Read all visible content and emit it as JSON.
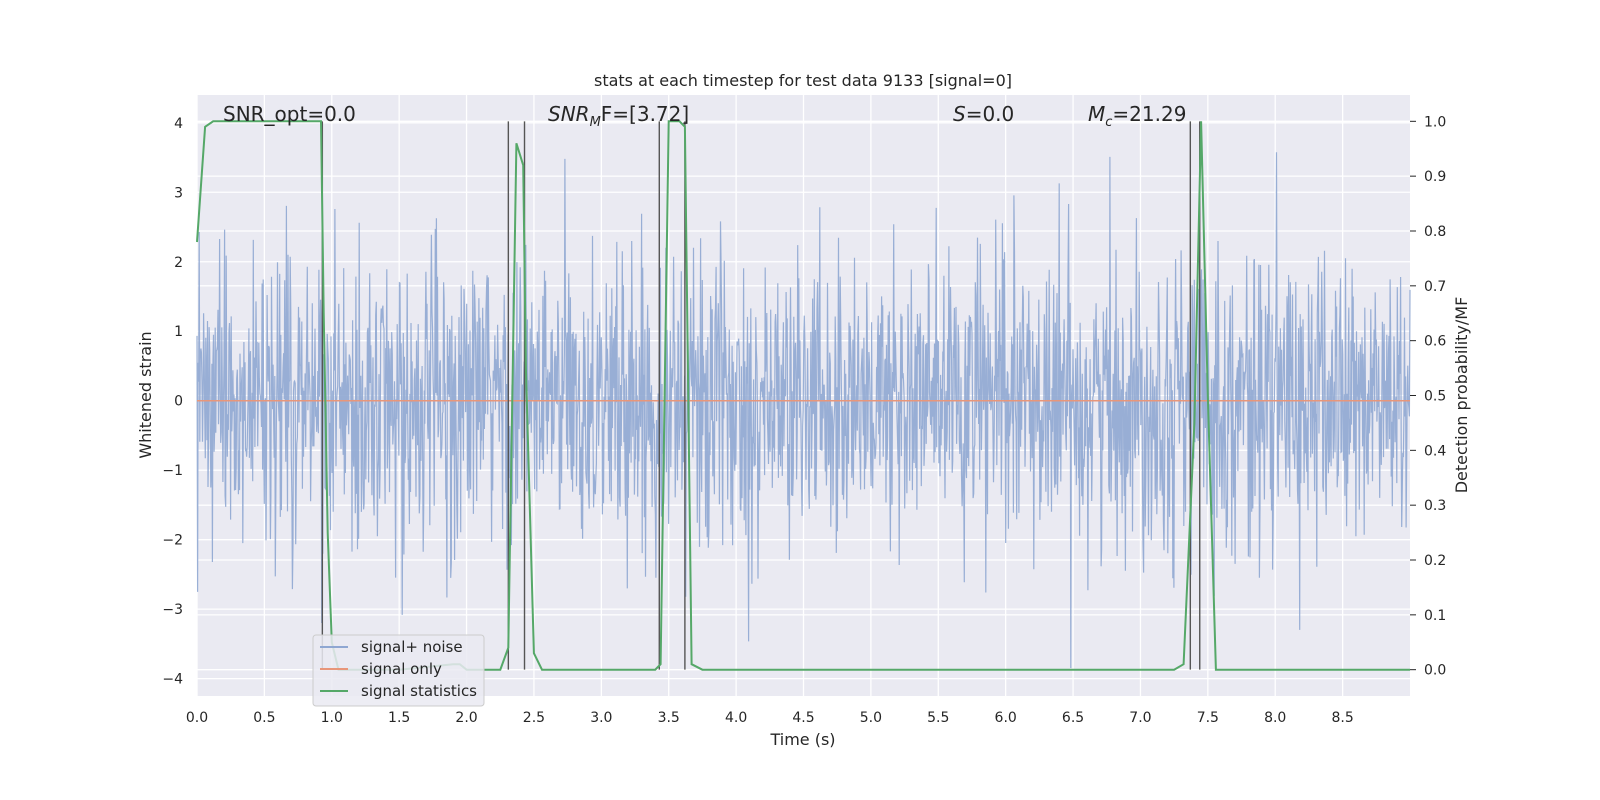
{
  "chart_data": {
    "type": "line",
    "title": "stats at each timestep for test data 9133 [signal=0]",
    "xlabel": "Time (s)",
    "ylabel": "Whitened strain",
    "ylabel_right": "Detection probability/MF",
    "xlim": [
      0.0,
      9.0
    ],
    "ylim": [
      -4.25,
      4.4
    ],
    "ylim_right": [
      -0.048,
      1.048
    ],
    "x_ticks": [
      "0.0",
      "0.5",
      "1.0",
      "1.5",
      "2.0",
      "2.5",
      "3.0",
      "3.5",
      "4.0",
      "4.5",
      "5.0",
      "5.5",
      "6.0",
      "6.5",
      "7.0",
      "7.5",
      "8.0",
      "8.5"
    ],
    "y_ticks": [
      "4",
      "3",
      "2",
      "1",
      "0",
      "−1",
      "−2",
      "−3",
      "−4"
    ],
    "y_ticks_right": [
      "1.0",
      "0.9",
      "0.8",
      "0.7",
      "0.6",
      "0.5",
      "0.4",
      "0.3",
      "0.2",
      "0.1",
      "0.0"
    ],
    "annotations": [
      {
        "id": "snr_opt",
        "text": "SNR_opt=0.0"
      },
      {
        "id": "snr_mf",
        "text": "SNR",
        "sub": "M",
        "rest": "F=[3.72]"
      },
      {
        "id": "s_stat",
        "text": "S",
        "rest": "=0.0"
      },
      {
        "id": "mc",
        "text": "M",
        "sub": "c",
        "rest": "=21.29"
      }
    ],
    "legend": {
      "placement": "lower-left",
      "entries": [
        {
          "label": "signal+ noise",
          "color": "#8fa7d2"
        },
        {
          "label": "signal only",
          "color": "#e8967a"
        },
        {
          "label": "signal statistics",
          "color": "#55a868"
        }
      ]
    },
    "series": [
      {
        "name": "signal+ noise",
        "color": "#8fa7d2",
        "kind": "noise",
        "envelope_max": 4.0,
        "envelope_min": -3.9,
        "duration_s": 9.0
      },
      {
        "name": "signal only",
        "color": "#e8967a",
        "x": [
          0.0,
          9.0
        ],
        "y": [
          0.0,
          0.0
        ]
      },
      {
        "name": "signal statistics",
        "color": "#55a868",
        "axis": "right",
        "x": [
          0.0,
          0.06,
          0.12,
          0.3,
          0.92,
          0.94,
          0.97,
          1.0,
          1.05,
          1.1,
          1.5,
          1.9,
          1.95,
          2.0,
          2.25,
          2.31,
          2.37,
          2.42,
          2.44,
          2.5,
          2.56,
          2.8,
          3.4,
          3.44,
          3.5,
          3.58,
          3.62,
          3.67,
          3.75,
          4.0,
          7.25,
          7.32,
          7.4,
          7.45,
          7.5,
          7.56,
          8.0,
          9.0
        ],
        "y": [
          0.78,
          0.99,
          1.0,
          1.0,
          1.0,
          0.65,
          0.25,
          0.05,
          0.0,
          0.0,
          0.0,
          0.01,
          0.01,
          0.0,
          0.0,
          0.04,
          0.96,
          0.92,
          0.55,
          0.03,
          0.0,
          0.0,
          0.0,
          0.01,
          1.0,
          1.0,
          0.99,
          0.01,
          0.0,
          0.0,
          0.0,
          0.01,
          0.45,
          1.0,
          0.5,
          0.0,
          0.0,
          0.0
        ]
      }
    ],
    "event_markers_s": [
      0.93,
      2.31,
      2.43,
      3.43,
      3.62,
      7.37,
      7.44
    ],
    "grid": true
  }
}
